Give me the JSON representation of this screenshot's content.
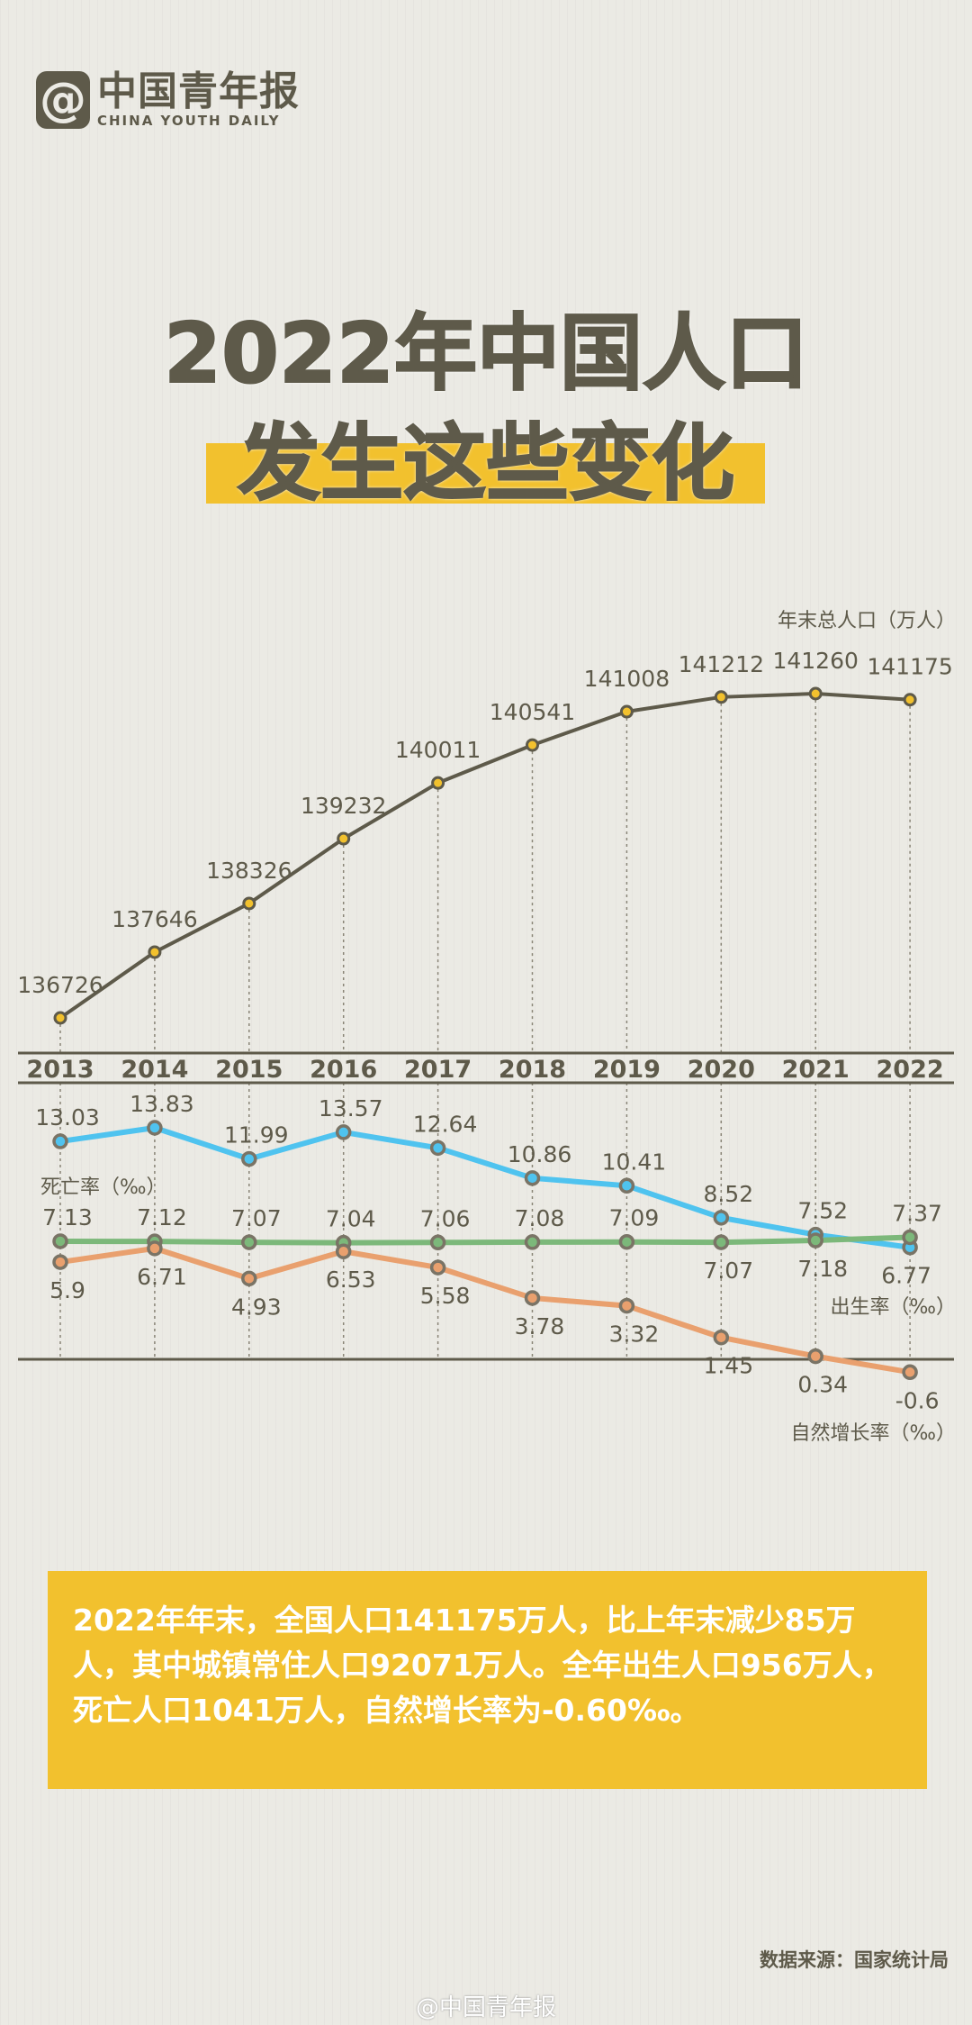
{
  "logo": {
    "icon": "at-icon",
    "at": "@",
    "name_cn": "中国青年报",
    "name_en": "CHINA YOUTH DAILY"
  },
  "title": {
    "line1": "2022年中国人口",
    "line2": "发生这些变化"
  },
  "chart_data": [
    {
      "type": "line",
      "title": "",
      "series_label": "年末总人口（万人）",
      "categories": [
        "2013",
        "2014",
        "2015",
        "2016",
        "2017",
        "2018",
        "2019",
        "2020",
        "2021",
        "2022"
      ],
      "series": [
        {
          "name": "年末总人口（万人）",
          "values": [
            136726,
            137646,
            138326,
            139232,
            140011,
            140541,
            141008,
            141212,
            141260,
            141175
          ],
          "color": "#5e5a4a"
        }
      ]
    },
    {
      "type": "line",
      "title": "",
      "categories": [
        "2013",
        "2014",
        "2015",
        "2016",
        "2017",
        "2018",
        "2019",
        "2020",
        "2021",
        "2022"
      ],
      "series": [
        {
          "name": "出生率（‰）",
          "values": [
            13.03,
            13.83,
            11.99,
            13.57,
            12.64,
            10.86,
            10.41,
            8.52,
            7.52,
            6.77
          ],
          "color": "#4fc3ef"
        },
        {
          "name": "死亡率（‰）",
          "values": [
            7.13,
            7.12,
            7.07,
            7.04,
            7.06,
            7.08,
            7.09,
            7.07,
            7.18,
            7.37
          ],
          "color": "#7cb87a"
        },
        {
          "name": "自然增长率（‰）",
          "values": [
            5.9,
            6.71,
            4.93,
            6.53,
            5.58,
            3.78,
            3.32,
            1.45,
            0.34,
            -0.6
          ],
          "color": "#e9a06e"
        }
      ]
    }
  ],
  "summary": "2022年年末，全国人口141175万人，比上年末减少85万人，其中城镇常住人口92071万人。全年出生人口956万人，死亡人口1041万人，自然增长率为-0.60‰。",
  "source": "数据来源：国家统计局",
  "watermark": "@中国青年报",
  "colors": {
    "text": "#5e5a4a",
    "accent": "#f2c12e",
    "background": "#ebeae4"
  }
}
